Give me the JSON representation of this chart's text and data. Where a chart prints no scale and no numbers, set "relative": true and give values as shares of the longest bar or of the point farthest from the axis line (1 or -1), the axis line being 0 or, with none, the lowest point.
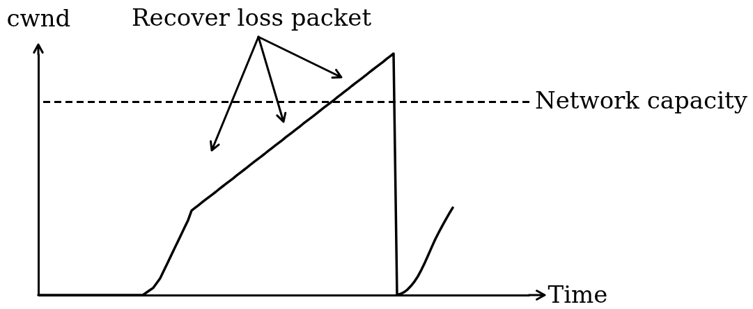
{
  "chart_data": {
    "type": "line",
    "xlabel": "Time",
    "ylabel": "cwnd",
    "relative": true,
    "categories": [
      null,
      null,
      null,
      null,
      null,
      null,
      null,
      null,
      null,
      null,
      null,
      null,
      null,
      null,
      null,
      null,
      null,
      null,
      null,
      null,
      null,
      null,
      null,
      null,
      null,
      null,
      null,
      null,
      null,
      null,
      null,
      null,
      null,
      null,
      null,
      null,
      null,
      null,
      null,
      null,
      null,
      null,
      null,
      null,
      null,
      null,
      null,
      null,
      null,
      null,
      null,
      null,
      null,
      null,
      null,
      null,
      null,
      null,
      null,
      null,
      null,
      null,
      null,
      null,
      null,
      null,
      null,
      null,
      null,
      null,
      null,
      null,
      null,
      null,
      null,
      null,
      null,
      null,
      null,
      null,
      null,
      null,
      null,
      null,
      null,
      null,
      null,
      null,
      null,
      null,
      null,
      null,
      null,
      null,
      null,
      null,
      null,
      null,
      null,
      null,
      null,
      null,
      null,
      null,
      null,
      null,
      null,
      null,
      null,
      null,
      null,
      null,
      null,
      null,
      null,
      null,
      null,
      null,
      null,
      null,
      null,
      null,
      null,
      null,
      null,
      null,
      null,
      null,
      null,
      null,
      null,
      null,
      null,
      null,
      null,
      null,
      null,
      null,
      null,
      null,
      null,
      null
    ],
    "series": [
      {
        "color": "#000000",
        "values": [
          0,
          0,
          0,
          0,
          0,
          0,
          0,
          0,
          0,
          0,
          0,
          0,
          0,
          0,
          0,
          0,
          0,
          0,
          0,
          0,
          0,
          0,
          0,
          0,
          0,
          0,
          0,
          0,
          0,
          0,
          0,
          0.01,
          0.02,
          0.03,
          0.05,
          0.07,
          0.1,
          0.13,
          0.16,
          0.19,
          0.22,
          0.25,
          0.28,
          0.31,
          0.35,
          0.361,
          0.372,
          0.384,
          0.395,
          0.406,
          0.417,
          0.428,
          0.44,
          0.451,
          0.462,
          0.473,
          0.484,
          0.496,
          0.507,
          0.518,
          0.529,
          0.541,
          0.552,
          0.563,
          0.574,
          0.585,
          0.597,
          0.608,
          0.619,
          0.63,
          0.641,
          0.653,
          0.664,
          0.675,
          0.686,
          0.697,
          0.709,
          0.72,
          0.731,
          0.742,
          0.753,
          0.765,
          0.776,
          0.787,
          0.798,
          0.809,
          0.821,
          0.832,
          0.843,
          0.854,
          0.866,
          0.877,
          0.888,
          0.899,
          0.91,
          0.922,
          0.933,
          0.944,
          0.955,
          0.966,
          0.978,
          0.989,
          1,
          0,
          0.005,
          0.012,
          0.023,
          0.038,
          0.056,
          0.078,
          0.105,
          0.135,
          0.167,
          0.2,
          0.232,
          0.26,
          0.287,
          0.313,
          0.338,
          0.362,
          null,
          null,
          null,
          null,
          null,
          null,
          null,
          null,
          null,
          null,
          null,
          null,
          null,
          null,
          null,
          null,
          null,
          null,
          null,
          null,
          null,
          null
        ]
      }
    ],
    "ref_lines": [
      {
        "axis": "y",
        "value": 0.8,
        "label": "Network capacity",
        "color": "#000000",
        "line_style": "dashed"
      }
    ],
    "annotations": [
      "Recover loss packet"
    ]
  }
}
